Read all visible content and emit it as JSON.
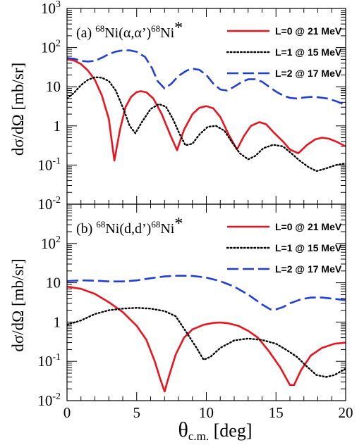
{
  "chart_data": [
    {
      "type": "line",
      "panel_label": "(a)",
      "reaction": {
        "target_mass": "68",
        "target": "Ni",
        "process": "(α,α’)",
        "product_mass": "68",
        "product": "Ni",
        "star": "*"
      },
      "ylabel": "dσ/dΩ [mb/sr]",
      "xlim": [
        0,
        20
      ],
      "ylim": [
        0.01,
        1000
      ],
      "yscale": "log",
      "yticks": [
        {
          "v": 0.01,
          "base": "10",
          "exp": "-2"
        },
        {
          "v": 0.1,
          "base": "10",
          "exp": "-1"
        },
        {
          "v": 1,
          "base": "1",
          "exp": ""
        },
        {
          "v": 10,
          "base": "10",
          "exp": ""
        },
        {
          "v": 100,
          "base": "10",
          "exp": "2"
        },
        {
          "v": 1000,
          "base": "10",
          "exp": "3"
        }
      ],
      "legend_position": "top-right",
      "series": [
        {
          "name": "L=0 @ 21 MeV",
          "color": "#e8141e",
          "dash": "solid",
          "points": [
            [
              0,
              50
            ],
            [
              0.5,
              47
            ],
            [
              1,
              38
            ],
            [
              1.5,
              26
            ],
            [
              2,
              15
            ],
            [
              2.5,
              6
            ],
            [
              3,
              1.5
            ],
            [
              3.4,
              0.13
            ],
            [
              3.8,
              0.8
            ],
            [
              4.2,
              3
            ],
            [
              4.6,
              5.5
            ],
            [
              5,
              7.3
            ],
            [
              5.3,
              7.7
            ],
            [
              5.7,
              7.2
            ],
            [
              6.2,
              5
            ],
            [
              6.8,
              2
            ],
            [
              7.4,
              0.6
            ],
            [
              7.9,
              0.24
            ],
            [
              8.4,
              0.8
            ],
            [
              9,
              2
            ],
            [
              9.5,
              2.9
            ],
            [
              10,
              3.2
            ],
            [
              10.5,
              2.8
            ],
            [
              11,
              1.7
            ],
            [
              11.6,
              0.6
            ],
            [
              12.2,
              0.25
            ],
            [
              12.7,
              0.55
            ],
            [
              13.2,
              1
            ],
            [
              13.8,
              1.25
            ],
            [
              14.3,
              1.1
            ],
            [
              14.8,
              0.7
            ],
            [
              15.5,
              0.4
            ],
            [
              16,
              0.25
            ],
            [
              16.6,
              0.2
            ],
            [
              17.2,
              0.32
            ],
            [
              17.8,
              0.45
            ],
            [
              18.3,
              0.5
            ],
            [
              18.8,
              0.47
            ],
            [
              19.3,
              0.4
            ],
            [
              20,
              0.3
            ]
          ]
        },
        {
          "name": "L=1 @ 15 MeV",
          "color": "#000000",
          "dash": "dotted",
          "points": [
            [
              0,
              5
            ],
            [
              0.5,
              7
            ],
            [
              1,
              11
            ],
            [
              1.5,
              15
            ],
            [
              2,
              17.5
            ],
            [
              2.5,
              17
            ],
            [
              3,
              14
            ],
            [
              3.5,
              8
            ],
            [
              4,
              3
            ],
            [
              4.5,
              1
            ],
            [
              4.9,
              0.65
            ],
            [
              5.4,
              1.3
            ],
            [
              6,
              2.7
            ],
            [
              6.6,
              3.6
            ],
            [
              7.1,
              3.1
            ],
            [
              7.6,
              1.5
            ],
            [
              8.1,
              0.6
            ],
            [
              8.5,
              0.32
            ],
            [
              9,
              0.35
            ],
            [
              9.5,
              0.6
            ],
            [
              10.1,
              0.95
            ],
            [
              10.7,
              1
            ],
            [
              11.3,
              0.75
            ],
            [
              11.8,
              0.4
            ],
            [
              12.4,
              0.2
            ],
            [
              13,
              0.14
            ],
            [
              13.5,
              0.17
            ],
            [
              14.1,
              0.27
            ],
            [
              14.8,
              0.33
            ],
            [
              15.5,
              0.3
            ],
            [
              16.1,
              0.2
            ],
            [
              16.7,
              0.13
            ],
            [
              17.3,
              0.09
            ],
            [
              17.9,
              0.07
            ],
            [
              18.5,
              0.08
            ],
            [
              19.3,
              0.1
            ],
            [
              20,
              0.11
            ]
          ]
        },
        {
          "name": "L=2 @ 17 MeV",
          "color": "#1f3fd8",
          "dash": "dashed",
          "points": [
            [
              0,
              54
            ],
            [
              0.5,
              52
            ],
            [
              1,
              46
            ],
            [
              1.5,
              44
            ],
            [
              2,
              46
            ],
            [
              2.5,
              55
            ],
            [
              3,
              68
            ],
            [
              3.5,
              79
            ],
            [
              4,
              85
            ],
            [
              4.5,
              85
            ],
            [
              5,
              78
            ],
            [
              5.6,
              58
            ],
            [
              6.1,
              30
            ],
            [
              6.5,
              14
            ],
            [
              7,
              9
            ],
            [
              7.5,
              12
            ],
            [
              8,
              19
            ],
            [
              8.6,
              26
            ],
            [
              9,
              29
            ],
            [
              9.5,
              27
            ],
            [
              10,
              20
            ],
            [
              10.5,
              12
            ],
            [
              11,
              8.5
            ],
            [
              11.5,
              8
            ],
            [
              12,
              10
            ],
            [
              12.5,
              13
            ],
            [
              13,
              15.5
            ],
            [
              13.5,
              15.5
            ],
            [
              14,
              13.5
            ],
            [
              14.5,
              10
            ],
            [
              15,
              7.5
            ],
            [
              15.5,
              6
            ],
            [
              16,
              5.2
            ],
            [
              16.5,
              5
            ],
            [
              17,
              5.3
            ],
            [
              17.5,
              5.5
            ],
            [
              18,
              5.4
            ],
            [
              18.7,
              5
            ],
            [
              19.3,
              4.3
            ],
            [
              20,
              3.4
            ]
          ]
        }
      ]
    },
    {
      "type": "line",
      "panel_label": "(b)",
      "reaction": {
        "target_mass": "68",
        "target": "Ni",
        "process": "(d,d’)",
        "product_mass": "68",
        "product": "Ni",
        "star": "*"
      },
      "ylabel": "dσ/dΩ [mb/sr]",
      "xlabel": "θ",
      "xlabel_sub": "c.m.",
      "xlabel_unit": "[deg]",
      "xlim": [
        0,
        20
      ],
      "ylim": [
        0.01,
        1000
      ],
      "yscale": "log",
      "xticks": [
        0,
        5,
        10,
        15,
        20
      ],
      "yticks": [
        {
          "v": 0.01,
          "base": "10",
          "exp": "-2"
        },
        {
          "v": 0.1,
          "base": "10",
          "exp": "-1"
        },
        {
          "v": 1,
          "base": "1",
          "exp": ""
        },
        {
          "v": 10,
          "base": "10",
          "exp": ""
        },
        {
          "v": 100,
          "base": "10",
          "exp": "2"
        }
      ],
      "legend_position": "top-right",
      "series": [
        {
          "name": "L=0 @ 21 MeV",
          "color": "#e8141e",
          "dash": "solid",
          "points": [
            [
              0,
              8
            ],
            [
              1,
              7
            ],
            [
              2,
              5.2
            ],
            [
              3,
              3.2
            ],
            [
              4,
              1.8
            ],
            [
              5,
              0.8
            ],
            [
              5.7,
              0.35
            ],
            [
              6.3,
              0.1
            ],
            [
              6.7,
              0.035
            ],
            [
              7,
              0.017
            ],
            [
              7.3,
              0.04
            ],
            [
              7.8,
              0.15
            ],
            [
              8.4,
              0.4
            ],
            [
              9,
              0.65
            ],
            [
              9.8,
              0.85
            ],
            [
              10.5,
              0.95
            ],
            [
              11,
              0.97
            ],
            [
              11.6,
              0.93
            ],
            [
              12.3,
              0.8
            ],
            [
              13,
              0.6
            ],
            [
              13.7,
              0.4
            ],
            [
              14.5,
              0.18
            ],
            [
              15.3,
              0.07
            ],
            [
              16,
              0.025
            ],
            [
              16.3,
              0.025
            ],
            [
              16.8,
              0.06
            ],
            [
              17.5,
              0.14
            ],
            [
              18.3,
              0.22
            ],
            [
              19.2,
              0.28
            ],
            [
              20,
              0.3
            ]
          ]
        },
        {
          "name": "L=1 @ 15 MeV",
          "color": "#000000",
          "dash": "dotted",
          "points": [
            [
              0,
              0.85
            ],
            [
              1,
              1.1
            ],
            [
              2,
              1.6
            ],
            [
              3,
              2
            ],
            [
              4,
              2.2
            ],
            [
              5,
              2.3
            ],
            [
              6,
              2.2
            ],
            [
              7,
              1.9
            ],
            [
              7.8,
              1.4
            ],
            [
              8.5,
              0.6
            ],
            [
              9.3,
              0.22
            ],
            [
              9.8,
              0.11
            ],
            [
              10.3,
              0.13
            ],
            [
              11,
              0.22
            ],
            [
              12,
              0.34
            ],
            [
              13,
              0.38
            ],
            [
              14,
              0.35
            ],
            [
              15,
              0.28
            ],
            [
              15.7,
              0.2
            ],
            [
              16.5,
              0.13
            ],
            [
              17.2,
              0.075
            ],
            [
              17.9,
              0.045
            ],
            [
              18.6,
              0.04
            ],
            [
              19.2,
              0.045
            ],
            [
              20,
              0.065
            ]
          ]
        },
        {
          "name": "L=2 @ 17 MeV",
          "color": "#1f3fd8",
          "dash": "dashed",
          "points": [
            [
              0,
              11
            ],
            [
              1,
              11.5
            ],
            [
              2,
              11.3
            ],
            [
              3,
              10.8
            ],
            [
              4,
              10.8
            ],
            [
              5,
              11.5
            ],
            [
              6,
              13
            ],
            [
              7,
              14.5
            ],
            [
              8,
              15.2
            ],
            [
              9,
              15
            ],
            [
              10,
              13.5
            ],
            [
              11,
              11
            ],
            [
              12,
              8
            ],
            [
              13,
              5
            ],
            [
              14,
              2.8
            ],
            [
              14.6,
              2.1
            ],
            [
              15,
              2.1
            ],
            [
              15.5,
              2.4
            ],
            [
              16,
              3
            ],
            [
              16.8,
              3.8
            ],
            [
              17.5,
              4.2
            ],
            [
              18.3,
              4.2
            ],
            [
              19.2,
              3.9
            ],
            [
              20,
              3.6
            ]
          ]
        }
      ]
    }
  ]
}
